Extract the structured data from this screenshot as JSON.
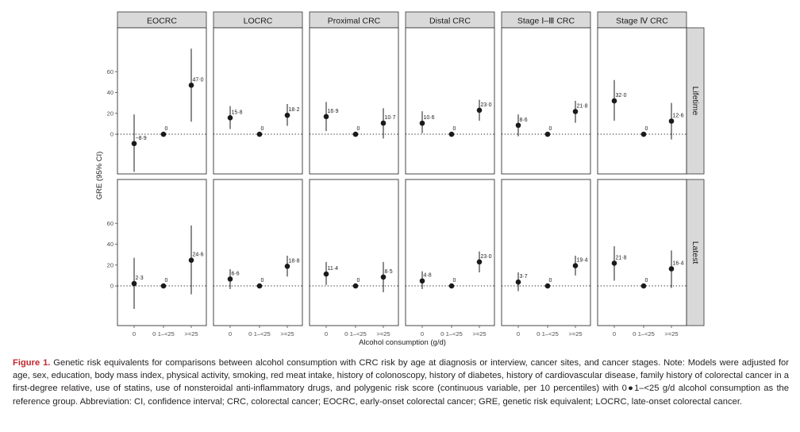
{
  "chart_data": {
    "type": "scatter",
    "plot_style": "faceted point estimates with 95% CI error bars",
    "ylabel": "GRE (95% CI)",
    "xlabel": "Alcohol consumption (g/d)",
    "categories": [
      "0",
      "0·1–<25",
      ">=25"
    ],
    "yticks": [
      0,
      20,
      40,
      60
    ],
    "ylim": [
      -38,
      102
    ],
    "grid": false,
    "reference_line": {
      "y": 0,
      "style": "dotted"
    },
    "columns": [
      "EOCRC",
      "LOCRC",
      "Proximal CRC",
      "Distal CRC",
      "Stage Ⅰ–Ⅲ CRC",
      "Stage Ⅳ CRC"
    ],
    "rows": [
      "Lifetime",
      "Latest"
    ],
    "panels": [
      [
        {
          "points": [
            {
              "est": -8.9,
              "lo": -36,
              "hi": 19,
              "label": "−8·9"
            },
            {
              "est": 0,
              "label": "0"
            },
            {
              "est": 47.0,
              "lo": 12,
              "hi": 82,
              "label": "47·0"
            }
          ]
        },
        {
          "points": [
            {
              "est": 15.8,
              "lo": 5,
              "hi": 27,
              "label": "15·8"
            },
            {
              "est": 0,
              "label": "0"
            },
            {
              "est": 18.2,
              "lo": 8,
              "hi": 29,
              "label": "18·2"
            }
          ]
        },
        {
          "points": [
            {
              "est": 16.9,
              "lo": 3,
              "hi": 31,
              "label": "16·9"
            },
            {
              "est": 0,
              "label": "0"
            },
            {
              "est": 10.7,
              "lo": -4,
              "hi": 25,
              "label": "10·7"
            }
          ]
        },
        {
          "points": [
            {
              "est": 10.6,
              "lo": 1,
              "hi": 22,
              "label": "10·6"
            },
            {
              "est": 0,
              "label": "0"
            },
            {
              "est": 23.0,
              "lo": 13,
              "hi": 33,
              "label": "23·0"
            }
          ]
        },
        {
          "points": [
            {
              "est": 8.6,
              "lo": -2,
              "hi": 19,
              "label": "8·6"
            },
            {
              "est": 0,
              "label": "0"
            },
            {
              "est": 21.8,
              "lo": 11,
              "hi": 32,
              "label": "21·8"
            }
          ]
        },
        {
          "points": [
            {
              "est": 32.0,
              "lo": 13,
              "hi": 52,
              "label": "32·0"
            },
            {
              "est": 0,
              "label": "0"
            },
            {
              "est": 12.6,
              "lo": -5,
              "hi": 30,
              "label": "12·6"
            }
          ]
        }
      ],
      [
        {
          "points": [
            {
              "est": 2.3,
              "lo": -22,
              "hi": 27,
              "label": "2·3"
            },
            {
              "est": 0,
              "label": "0"
            },
            {
              "est": 24.6,
              "lo": -8,
              "hi": 58,
              "label": "24·6"
            }
          ]
        },
        {
          "points": [
            {
              "est": 6.6,
              "lo": -3,
              "hi": 16,
              "label": "6·6"
            },
            {
              "est": 0,
              "label": "0"
            },
            {
              "est": 18.8,
              "lo": 9,
              "hi": 29,
              "label": "18·8"
            }
          ]
        },
        {
          "points": [
            {
              "est": 11.4,
              "lo": 1,
              "hi": 23,
              "label": "11·4"
            },
            {
              "est": 0,
              "label": "0"
            },
            {
              "est": 8.5,
              "lo": -6,
              "hi": 23,
              "label": "8·5"
            }
          ]
        },
        {
          "points": [
            {
              "est": 4.8,
              "lo": -3,
              "hi": 14,
              "label": "4·8"
            },
            {
              "est": 0,
              "label": "0"
            },
            {
              "est": 23.0,
              "lo": 13,
              "hi": 33,
              "label": "23·0"
            }
          ]
        },
        {
          "points": [
            {
              "est": 3.7,
              "lo": -5,
              "hi": 13,
              "label": "3·7"
            },
            {
              "est": 0,
              "label": "0"
            },
            {
              "est": 19.4,
              "lo": 10,
              "hi": 29,
              "label": "19·4"
            }
          ]
        },
        {
          "points": [
            {
              "est": 21.8,
              "lo": 5,
              "hi": 38,
              "label": "21·8"
            },
            {
              "est": 0,
              "label": "0"
            },
            {
              "est": 16.4,
              "lo": -2,
              "hi": 34,
              "label": "16·4"
            }
          ]
        }
      ]
    ]
  },
  "caption": {
    "lead": "Figure 1.",
    "text": " Genetic risk equivalents for comparisons between alcohol consumption with CRC risk by age at diagnosis or interview, cancer sites, and cancer stages. Note: Models were adjusted for age, sex, education, body mass index, physical activity, smoking, red meat intake, history of colonoscopy, history of diabetes, history of cardiovascular disease, family history of colorectal cancer in a first-degree relative, use of statins, use of nonsteroidal anti-inflammatory drugs, and polygenic risk score (continuous variable, per 10 percentiles) with 0●1–<25 g/d alcohol consumption as the reference group. Abbreviation: CI, confidence interval; CRC, colorectal cancer; EOCRC, early-onset colorectal cancer; GRE, genetic risk equivalent; LOCRC, late-onset colorectal cancer."
  },
  "colors": {
    "strip": "#d9d9d9",
    "ink": "#1a1a1a",
    "axis": "#4d4d4d",
    "panel_border": "#333333",
    "caption_lead": "#c0272d"
  }
}
